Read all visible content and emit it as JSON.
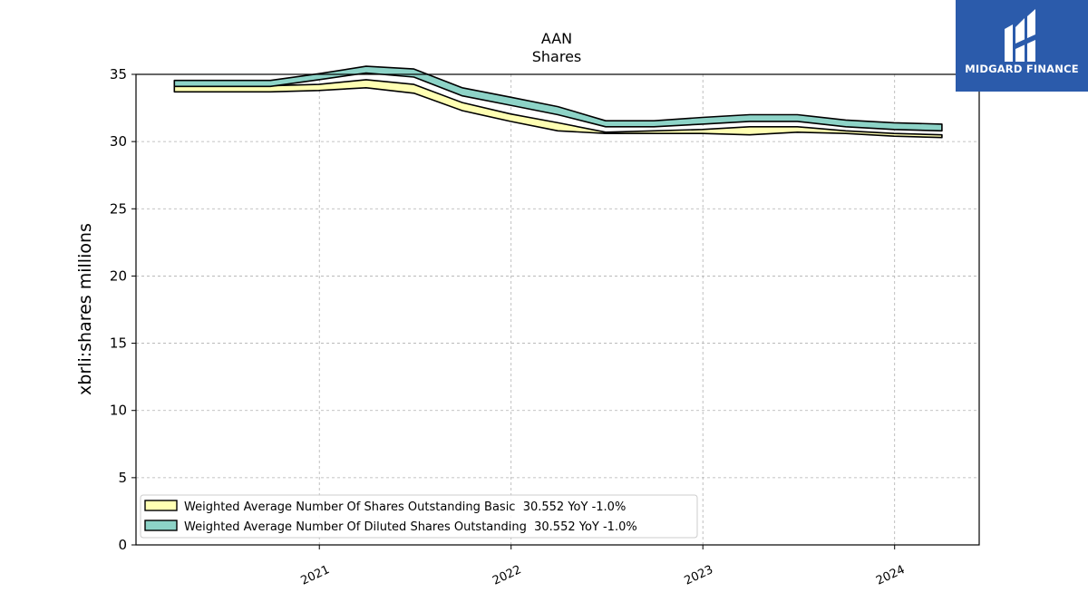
{
  "logo": {
    "text": "MIDGARD FINANCE",
    "bg": "#2b5bab"
  },
  "chart_data": {
    "type": "area",
    "title": "AAN",
    "subtitle": "Shares",
    "xlabel": "",
    "ylabel": "xbrli:shares millions",
    "xlim": [
      "2020-01-18",
      "2024-06-10"
    ],
    "ylim": [
      0,
      35
    ],
    "yticks": [
      0,
      5,
      10,
      15,
      20,
      25,
      30,
      35
    ],
    "xticks": [
      "2021",
      "2022",
      "2023",
      "2024"
    ],
    "grid": true,
    "legend_position": "lower-left",
    "x": [
      "2020-03-31",
      "2020-06-30",
      "2020-09-30",
      "2020-12-31",
      "2021-03-31",
      "2021-06-30",
      "2021-09-30",
      "2021-12-31",
      "2022-03-31",
      "2022-06-30",
      "2022-09-30",
      "2022-12-31",
      "2023-03-31",
      "2023-06-30",
      "2023-09-30",
      "2023-12-31",
      "2024-03-31"
    ],
    "series": [
      {
        "name": "Weighted Average Number Of Shares Outstanding Basic  30.552 YoY -1.0%",
        "color": "#ffffb3",
        "values": [
          33.7,
          33.7,
          33.7,
          33.8,
          34.0,
          33.6,
          32.3,
          31.5,
          30.8,
          30.6,
          30.6,
          30.6,
          30.5,
          30.7,
          30.6,
          30.4,
          30.3
        ],
        "thickness": [
          0.45,
          0.45,
          0.45,
          0.45,
          0.6,
          0.65,
          0.6,
          0.55,
          0.6,
          0.1,
          0.2,
          0.3,
          0.6,
          0.4,
          0.2,
          0.2,
          0.2
        ]
      },
      {
        "name": "Weighted Average Number Of Diluted Shares Outstanding  30.552 YoY -1.0%",
        "color": "#8dd3c7",
        "values": [
          34.1,
          34.1,
          34.1,
          34.6,
          35.1,
          34.8,
          33.4,
          32.7,
          32.0,
          31.1,
          31.1,
          31.3,
          31.5,
          31.5,
          31.1,
          30.9,
          30.8
        ],
        "thickness": [
          0.45,
          0.45,
          0.45,
          0.45,
          0.5,
          0.6,
          0.6,
          0.6,
          0.6,
          0.45,
          0.45,
          0.5,
          0.5,
          0.5,
          0.5,
          0.5,
          0.5
        ]
      }
    ]
  }
}
